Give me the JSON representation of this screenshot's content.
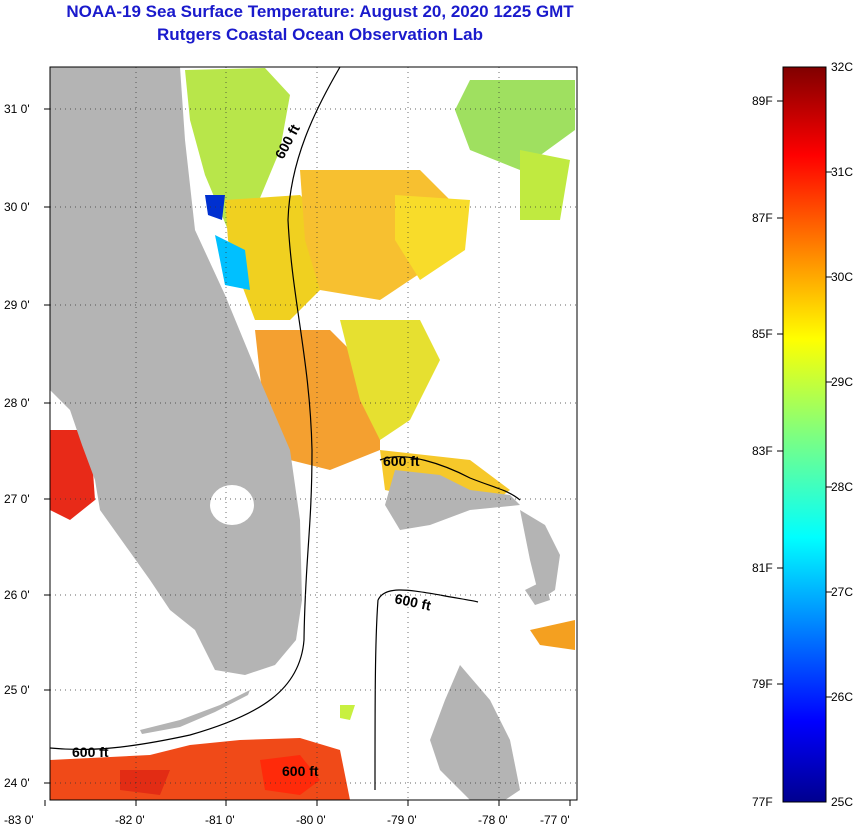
{
  "title": "NOAA-19 Sea Surface Temperature:  August 20, 2020 1225 GMT",
  "subtitle": "Rutgers Coastal Ocean Observation Lab",
  "axes": {
    "latitude_labels": [
      "31 0'",
      "30 0'",
      "29 0'",
      "28 0'",
      "27 0'",
      "26 0'",
      "25 0'",
      "24 0'"
    ],
    "longitude_labels": [
      "-83 0'",
      "-82 0'",
      "-81 0'",
      "-80 0'",
      "-79 0'",
      "-78 0'",
      "-77 0'"
    ]
  },
  "contour": {
    "label": "600 ft"
  },
  "colorbar": {
    "celsius": [
      "32C",
      "31C",
      "30C",
      "29C",
      "28C",
      "27C",
      "26C",
      "25C"
    ],
    "fahrenheit": [
      "89F",
      "87F",
      "85F",
      "83F",
      "81F",
      "79F",
      "77F"
    ]
  },
  "colors": {
    "title": "#1a1acc",
    "land": "#b4b4b4",
    "cold": "#00008f",
    "warm": "#800000"
  }
}
